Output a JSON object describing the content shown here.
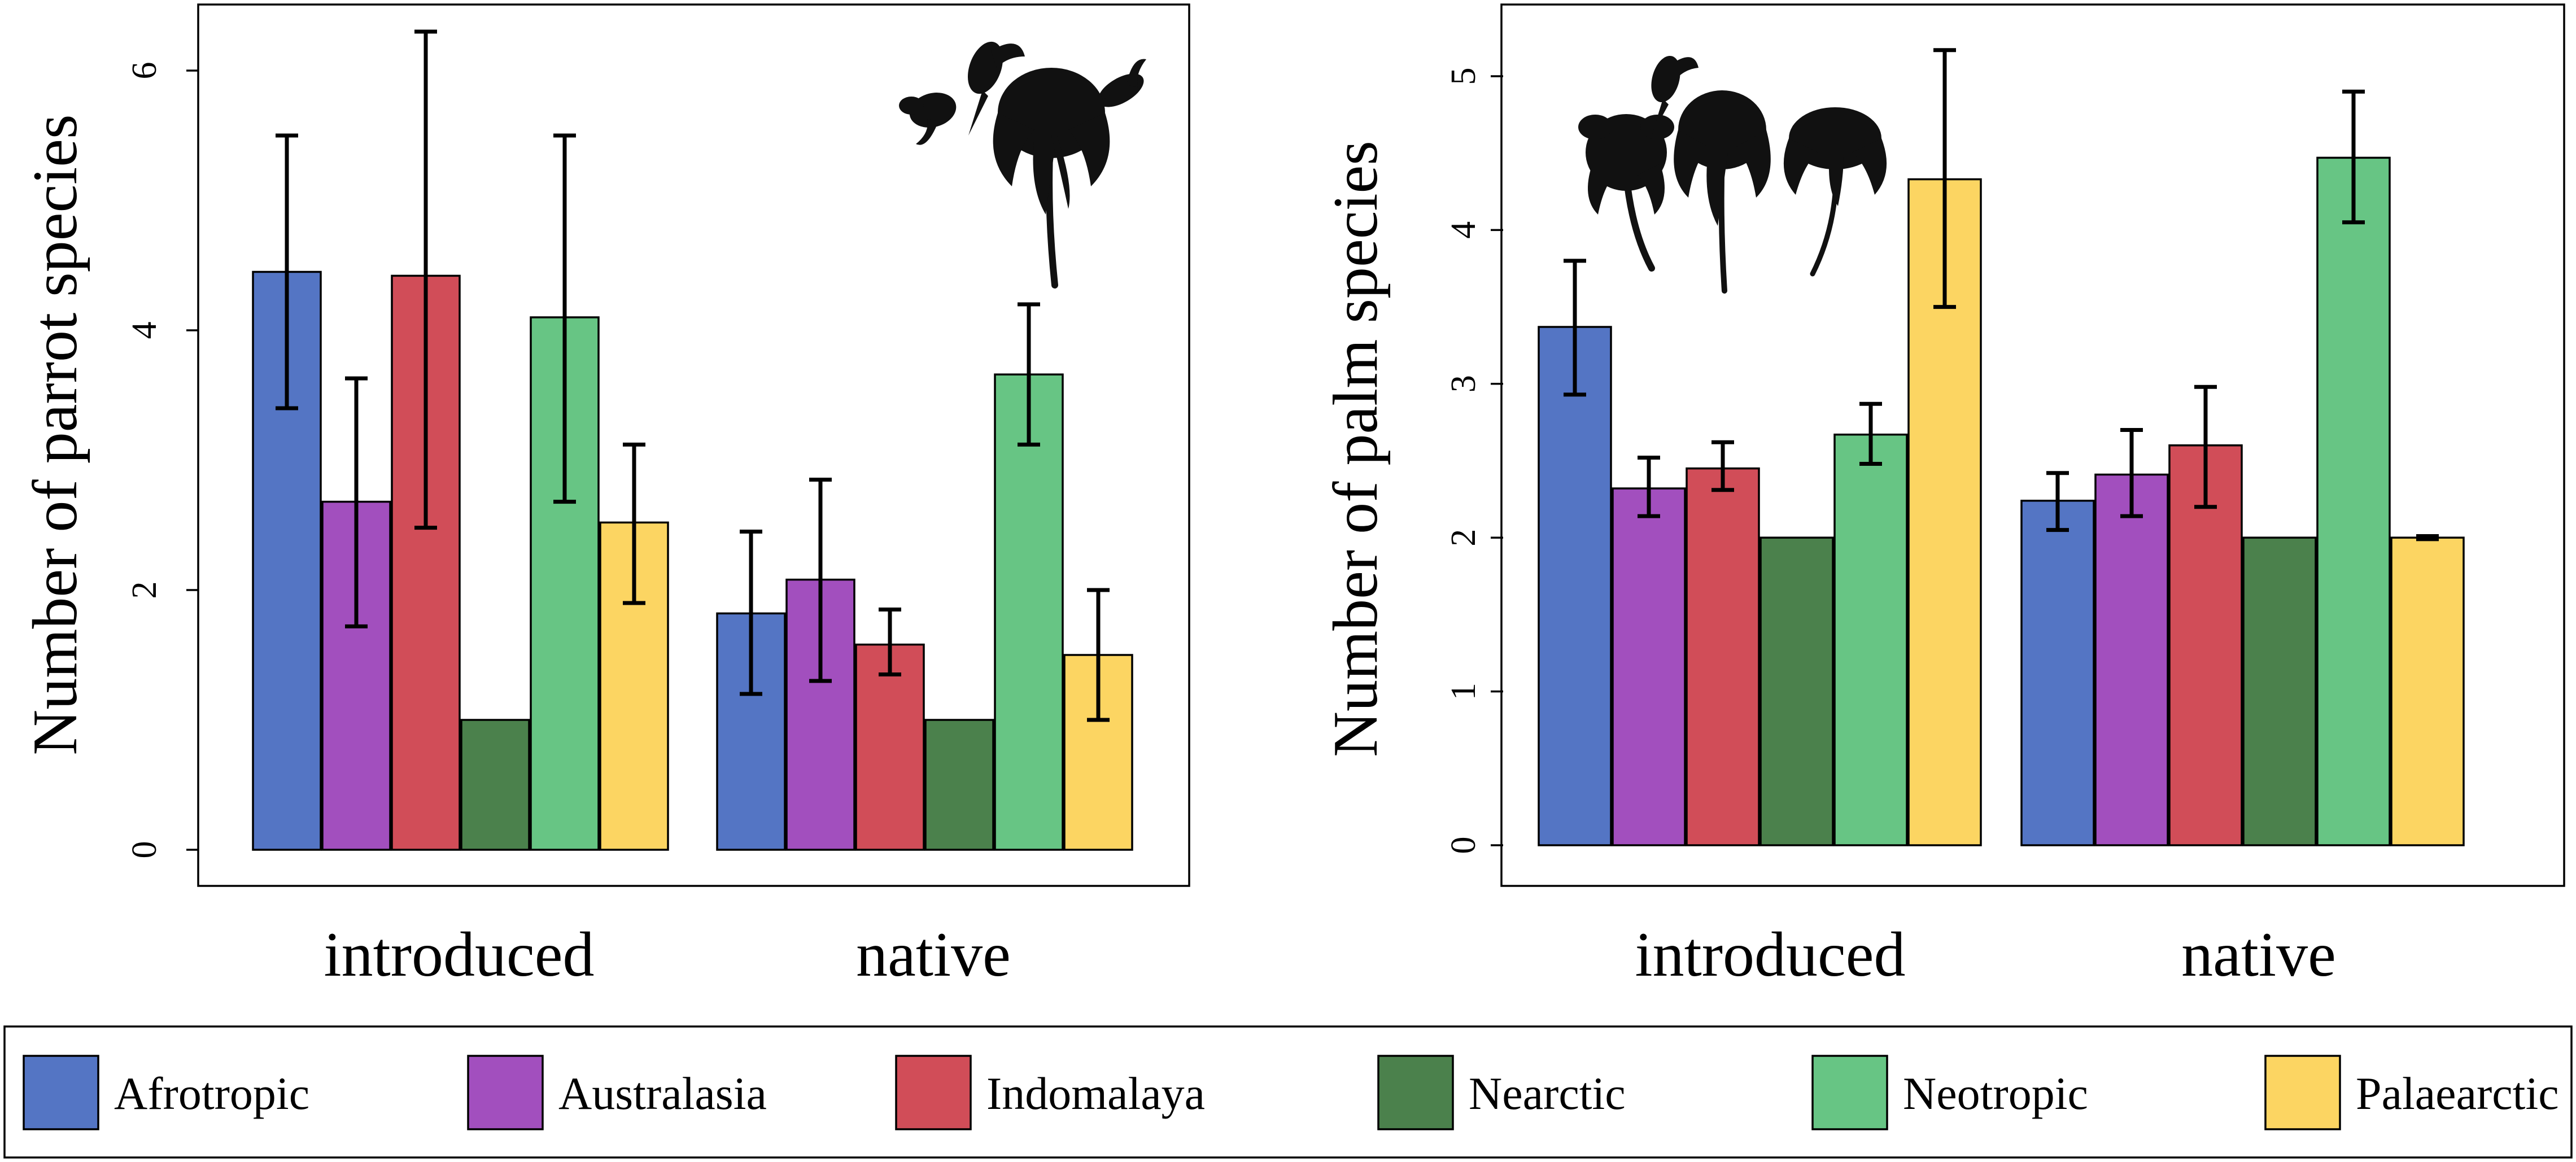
{
  "legend": [
    {
      "name": "Afrotropic",
      "color": "#5475C4"
    },
    {
      "name": "Australasia",
      "color": "#A24FBE"
    },
    {
      "name": "Indomalaya",
      "color": "#D14D58"
    },
    {
      "name": "Nearctic",
      "color": "#4B814C"
    },
    {
      "name": "Neotropic",
      "color": "#67C584"
    },
    {
      "name": "Palaearctic",
      "color": "#FCD562"
    }
  ],
  "chart_data": [
    {
      "type": "bar",
      "title": "",
      "xlabel": "",
      "ylabel": "Number of parrot species",
      "categories": [
        "introduced",
        "native"
      ],
      "ylim": [
        0,
        6.5
      ],
      "yticks": [
        0,
        2,
        4,
        6
      ],
      "grid": false,
      "icon": "parrots-and-palm-icon",
      "series": [
        {
          "name": "Afrotropic",
          "values": [
            4.45,
            1.82
          ],
          "error_low": [
            3.4,
            1.2
          ],
          "error_high": [
            5.5,
            2.45
          ]
        },
        {
          "name": "Australasia",
          "values": [
            2.68,
            2.08
          ],
          "error_low": [
            1.72,
            1.3
          ],
          "error_high": [
            3.63,
            2.85
          ]
        },
        {
          "name": "Indomalaya",
          "values": [
            4.42,
            1.58
          ],
          "error_low": [
            2.48,
            1.35
          ],
          "error_high": [
            6.3,
            1.85
          ]
        },
        {
          "name": "Nearctic",
          "values": [
            1.0,
            1.0
          ],
          "error_low": [
            null,
            null
          ],
          "error_high": [
            null,
            null
          ]
        },
        {
          "name": "Neotropic",
          "values": [
            4.1,
            3.66
          ],
          "error_low": [
            2.68,
            3.12
          ],
          "error_high": [
            5.5,
            4.2
          ]
        },
        {
          "name": "Palaearctic",
          "values": [
            2.52,
            1.5
          ],
          "error_low": [
            1.9,
            1.0
          ],
          "error_high": [
            3.12,
            2.0
          ]
        }
      ]
    },
    {
      "type": "bar",
      "title": "",
      "xlabel": "",
      "ylabel": "Number of palm species",
      "categories": [
        "introduced",
        "native"
      ],
      "ylim": [
        0,
        5.3
      ],
      "yticks": [
        0,
        1,
        2,
        3,
        4,
        5
      ],
      "grid": false,
      "icon": "palms-and-parrot-icon",
      "series": [
        {
          "name": "Afrotropic",
          "values": [
            3.37,
            2.24
          ],
          "error_low": [
            2.93,
            2.05
          ],
          "error_high": [
            3.8,
            2.42
          ]
        },
        {
          "name": "Australasia",
          "values": [
            2.32,
            2.41
          ],
          "error_low": [
            2.14,
            2.14
          ],
          "error_high": [
            2.52,
            2.7
          ]
        },
        {
          "name": "Indomalaya",
          "values": [
            2.45,
            2.6
          ],
          "error_low": [
            2.31,
            2.2
          ],
          "error_high": [
            2.62,
            2.98
          ]
        },
        {
          "name": "Nearctic",
          "values": [
            2.0,
            2.0
          ],
          "error_low": [
            null,
            null
          ],
          "error_high": [
            null,
            null
          ]
        },
        {
          "name": "Neotropic",
          "values": [
            2.67,
            4.47
          ],
          "error_low": [
            2.48,
            4.05
          ],
          "error_high": [
            2.87,
            4.9
          ]
        },
        {
          "name": "Palaearctic",
          "values": [
            4.33,
            2.0
          ],
          "error_low": [
            3.5,
            1.99
          ],
          "error_high": [
            5.17,
            2.01
          ]
        }
      ]
    }
  ]
}
